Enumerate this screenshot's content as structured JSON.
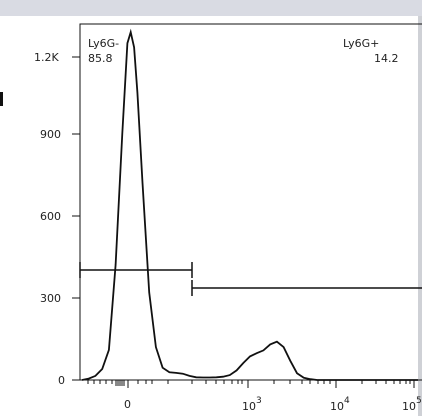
{
  "chart_data": {
    "type": "line",
    "x_axis": {
      "scale": "biexponential",
      "tick_labels": [
        "0",
        "10^3",
        "10^4",
        "10^5"
      ],
      "range_partial": "0 to ~10^5 (cropped)"
    },
    "y_axis": {
      "tick_labels": [
        "0",
        "300",
        "600",
        "900",
        "1.2K"
      ],
      "ylim": [
        0,
        1300
      ]
    },
    "gates": [
      {
        "name": "Ly6G-",
        "percent": "85.8"
      },
      {
        "name": "Ly6G+",
        "percent": "14.2"
      }
    ],
    "series": [
      {
        "values_x_note": "x positions as display-scale fractions of axis (0..1)",
        "x": [
          0.0,
          0.02,
          0.04,
          0.06,
          0.08,
          0.1,
          0.12,
          0.135,
          0.145,
          0.155,
          0.165,
          0.18,
          0.2,
          0.22,
          0.24,
          0.26,
          0.28,
          0.3,
          0.32,
          0.34,
          0.36,
          0.38,
          0.4,
          0.42,
          0.44,
          0.46,
          0.48,
          0.5,
          0.52,
          0.54,
          0.56,
          0.58,
          0.6,
          0.62,
          0.64,
          0.66,
          0.68,
          0.7,
          0.75,
          0.8,
          0.85,
          0.9,
          0.95,
          1.0
        ],
        "y": [
          0,
          5,
          15,
          40,
          110,
          420,
          900,
          1230,
          1270,
          1215,
          1050,
          720,
          320,
          120,
          45,
          28,
          26,
          23,
          15,
          10,
          9,
          9,
          10,
          12,
          18,
          35,
          62,
          86,
          98,
          108,
          130,
          140,
          120,
          70,
          25,
          8,
          3,
          0,
          0,
          0,
          0,
          0,
          0,
          0
        ]
      }
    ]
  }
}
